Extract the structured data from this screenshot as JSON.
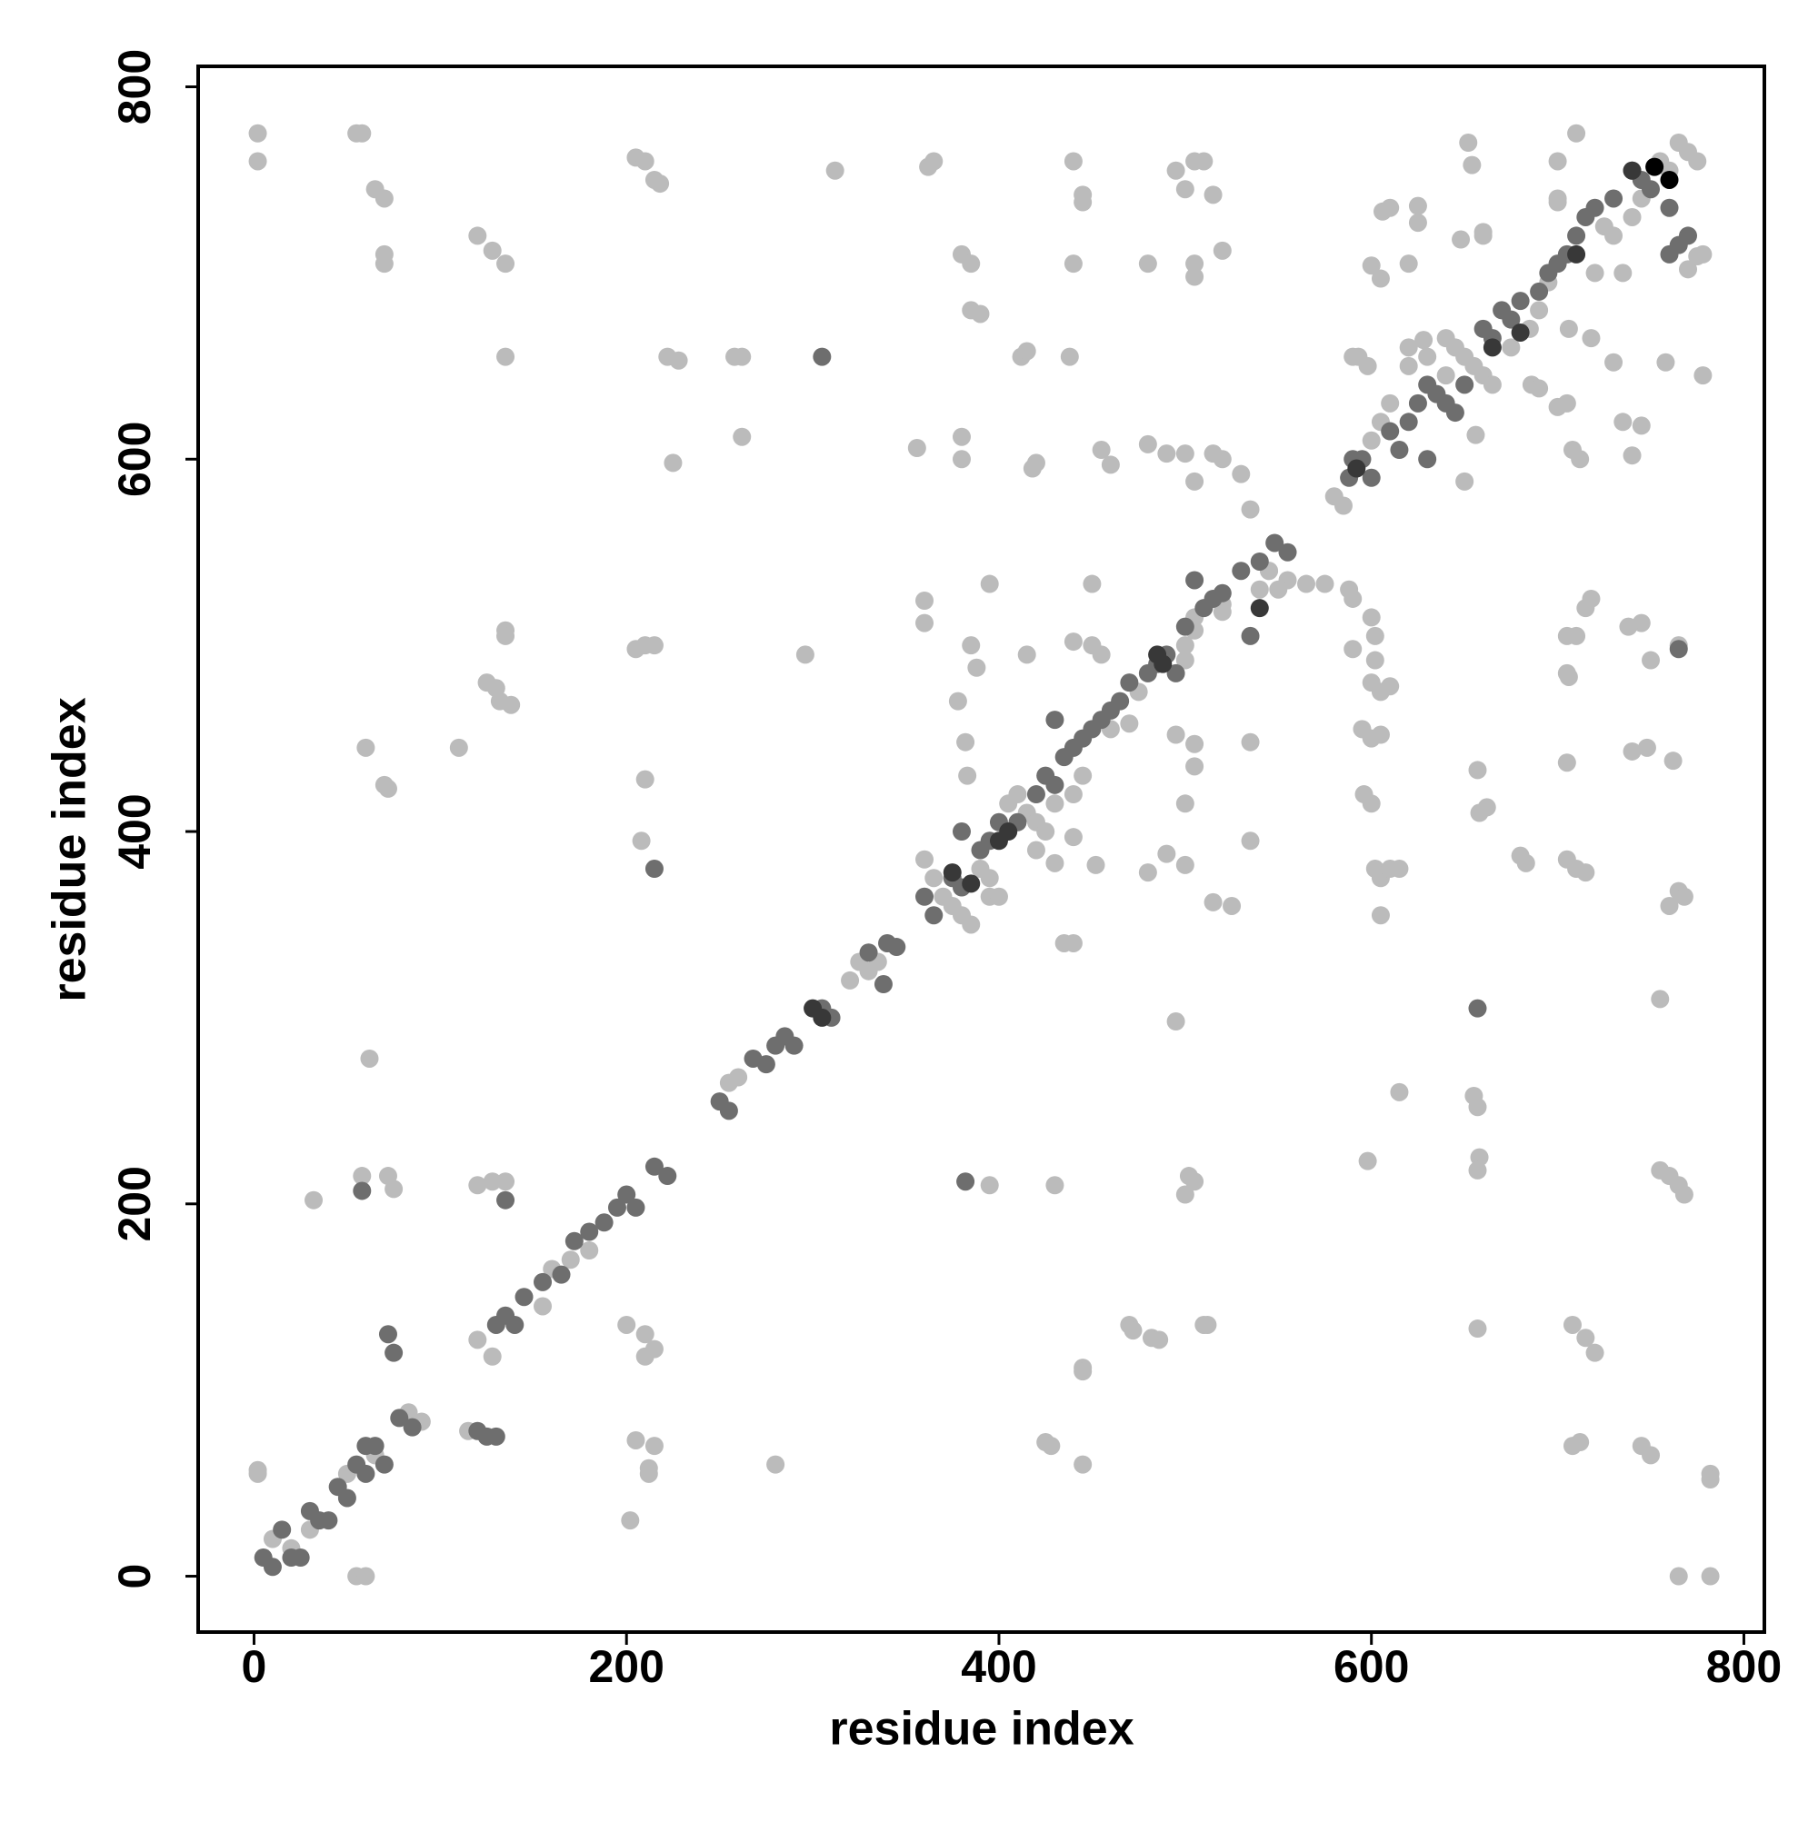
{
  "chart_data": {
    "type": "scatter",
    "xlabel": "residue index",
    "ylabel": "residue index",
    "xlim": [
      -30,
      811
    ],
    "ylim": [
      -30,
      811
    ],
    "xticks": [
      0,
      200,
      400,
      600,
      800
    ],
    "yticks": [
      0,
      200,
      400,
      600,
      800
    ],
    "series": [
      {
        "color": "#bbbbbb",
        "x": [
          2,
          2,
          55,
          58,
          65,
          70,
          70,
          70,
          120,
          128,
          135,
          135,
          205,
          210,
          215,
          218,
          222,
          228,
          258,
          262,
          312,
          362,
          365,
          440,
          445,
          445,
          440,
          380,
          385,
          385,
          390,
          412,
          415,
          438,
          495,
          500,
          505,
          510,
          515,
          520,
          480,
          505,
          505,
          460,
          455,
          420,
          418,
          380,
          380,
          356,
          262,
          225,
          480,
          490,
          500,
          505,
          515,
          520,
          530,
          535,
          652,
          654,
          610,
          606,
          625,
          625,
          620,
          660,
          660,
          600,
          605,
          648,
          590,
          593,
          598,
          620,
          628,
          640,
          700,
          700,
          710,
          760,
          758,
          770,
          775,
          778,
          706,
          718,
          730,
          735,
          745,
          740,
          708,
          712,
          700,
          705,
          686,
          690,
          656,
          650,
          60,
          70,
          72,
          110,
          135,
          135,
          125,
          130,
          132,
          138,
          205,
          210,
          215,
          210,
          208,
          62,
          58,
          72,
          75,
          32,
          120,
          128,
          135,
          200,
          210,
          210,
          215,
          205,
          215,
          212,
          202,
          280,
          212,
          120,
          128,
          115,
          83,
          90,
          2,
          2,
          55,
          60,
          296,
          360,
          360,
          378,
          385,
          388,
          395,
          383,
          382,
          415,
          440,
          450,
          455,
          450,
          452,
          440,
          430,
          440,
          435,
          395,
          400,
          420,
          395,
          430,
          425,
          428,
          445,
          445,
          445,
          470,
          472,
          482,
          486,
          510,
          512,
          500,
          505,
          502,
          495,
          490,
          500,
          500,
          505,
          480,
          515,
          525,
          535,
          535,
          495,
          505,
          500,
          505,
          520,
          545,
          555,
          565,
          575,
          588,
          590,
          600,
          602,
          602,
          600,
          595,
          590,
          600,
          605,
          605,
          610,
          596,
          600,
          602,
          605,
          610,
          615,
          605,
          615,
          598,
          655,
          657,
          658,
          657,
          657,
          657,
          658,
          662,
          680,
          683,
          705,
          706,
          715,
          718,
          705,
          710,
          705,
          705,
          710,
          715,
          708,
          715,
          720,
          708,
          712,
          745,
          750,
          755,
          760,
          765,
          768,
          760,
          765,
          768,
          762,
          765,
          755,
          748,
          740,
          745,
          738,
          750,
          765,
          782,
          782,
          782,
          778,
          700,
          10,
          20,
          30,
          50,
          65,
          155,
          160,
          170,
          180,
          255,
          260,
          320,
          325,
          330,
          335,
          360,
          365,
          370,
          375,
          380,
          385,
          390,
          395,
          405,
          410,
          415,
          420,
          425,
          430,
          440,
          445,
          460,
          470,
          475,
          500,
          505,
          520,
          540,
          545,
          550,
          580,
          585,
          600,
          605,
          610,
          620,
          630,
          640,
          645,
          650,
          655,
          660,
          665,
          675,
          685,
          690,
          695,
          720,
          725,
          730,
          735,
          740,
          755,
          765,
          770,
          775,
          745
        ],
        "values": [
          775,
          760,
          775,
          775,
          745,
          740,
          710,
          705,
          720,
          712,
          705,
          655,
          762,
          760,
          750,
          748,
          655,
          653,
          655,
          655,
          755,
          757,
          760,
          760,
          742,
          738,
          705,
          710,
          705,
          680,
          678,
          655,
          658,
          655,
          755,
          745,
          760,
          760,
          742,
          712,
          705,
          705,
          698,
          597,
          605,
          598,
          595,
          612,
          600,
          606,
          612,
          598,
          608,
          603,
          603,
          588,
          603,
          600,
          592,
          573,
          770,
          758,
          735,
          733,
          736,
          727,
          705,
          720,
          722,
          704,
          697,
          718,
          655,
          655,
          650,
          660,
          664,
          645,
          740,
          760,
          775,
          755,
          652,
          702,
          709,
          645,
          670,
          665,
          652,
          620,
          618,
          602,
          605,
          600,
          628,
          630,
          640,
          638,
          613,
          588,
          445,
          425,
          423,
          445,
          508,
          505,
          480,
          477,
          470,
          468,
          498,
          500,
          500,
          428,
          395,
          278,
          215,
          215,
          208,
          202,
          210,
          212,
          212,
          135,
          130,
          118,
          122,
          73,
          70,
          58,
          30,
          60,
          55,
          127,
          118,
          78,
          88,
          83,
          55,
          57,
          0,
          0,
          495,
          524,
          512,
          470,
          500,
          488,
          533,
          430,
          448,
          495,
          502,
          533,
          495,
          500,
          382,
          397,
          383,
          340,
          340,
          365,
          365,
          390,
          210,
          210,
          72,
          70,
          60,
          112,
          110,
          135,
          132,
          128,
          127,
          135,
          135,
          205,
          212,
          215,
          298,
          388,
          382,
          415,
          435,
          378,
          362,
          360,
          395,
          448,
          452,
          447,
          492,
          508,
          522,
          540,
          535,
          533,
          533,
          530,
          525,
          515,
          505,
          492,
          480,
          455,
          498,
          450,
          452,
          475,
          478,
          420,
          415,
          380,
          375,
          380,
          380,
          355,
          260,
          223,
          258,
          252,
          225,
          218,
          133,
          433,
          410,
          413,
          387,
          383,
          485,
          483,
          520,
          525,
          505,
          505,
          437,
          385,
          380,
          378,
          135,
          128,
          120,
          70,
          72,
          70,
          65,
          218,
          215,
          210,
          205,
          360,
          368,
          365,
          438,
          500,
          310,
          445,
          443,
          512,
          510,
          492,
          0,
          0,
          55,
          52,
          710,
          738,
          20,
          15,
          25,
          55,
          65,
          145,
          165,
          170,
          175,
          265,
          268,
          320,
          330,
          325,
          330,
          385,
          375,
          365,
          360,
          355,
          350,
          380,
          375,
          415,
          420,
          410,
          405,
          400,
          415,
          420,
          430,
          455,
          458,
          475,
          500,
          515,
          518,
          530,
          540,
          530,
          580,
          575,
          610,
          620,
          630,
          650,
          655,
          665,
          660,
          655,
          650,
          645,
          640,
          660,
          670,
          680,
          695,
          700,
          725,
          720,
          700,
          730,
          760,
          770,
          765,
          760,
          740
        ]
      },
      {
        "color": "#6e6e6e",
        "x": [
          305,
          215,
          382,
          657,
          58,
          135,
          765,
          5,
          10,
          15,
          20,
          25,
          30,
          35,
          40,
          45,
          50,
          55,
          60,
          60,
          65,
          70,
          72,
          75,
          78,
          85,
          125,
          130,
          120,
          130,
          135,
          140,
          145,
          155,
          165,
          172,
          180,
          188,
          195,
          200,
          205,
          215,
          222,
          250,
          255,
          268,
          275,
          280,
          285,
          290,
          305,
          310,
          330,
          340,
          345,
          338,
          360,
          365,
          375,
          380,
          390,
          395,
          400,
          410,
          420,
          425,
          430,
          435,
          440,
          445,
          450,
          455,
          460,
          465,
          470,
          480,
          485,
          490,
          495,
          500,
          505,
          510,
          515,
          520,
          530,
          535,
          540,
          548,
          555,
          588,
          595,
          600,
          610,
          615,
          620,
          625,
          630,
          635,
          640,
          645,
          660,
          665,
          670,
          675,
          680,
          690,
          695,
          700,
          705,
          710,
          715,
          720,
          730,
          740,
          745,
          750,
          760,
          760,
          765,
          770,
          630,
          650,
          590,
          380,
          430
        ],
        "values": [
          655,
          380,
          212,
          305,
          207,
          202,
          498,
          10,
          5,
          25,
          10,
          10,
          35,
          30,
          30,
          48,
          42,
          60,
          55,
          70,
          70,
          60,
          130,
          120,
          85,
          80,
          75,
          75,
          78,
          135,
          140,
          135,
          150,
          158,
          162,
          180,
          185,
          190,
          198,
          205,
          198,
          220,
          215,
          255,
          250,
          278,
          275,
          285,
          290,
          285,
          305,
          300,
          335,
          340,
          338,
          318,
          365,
          355,
          375,
          370,
          390,
          395,
          405,
          405,
          420,
          430,
          425,
          440,
          445,
          450,
          455,
          460,
          465,
          470,
          480,
          485,
          490,
          495,
          485,
          510,
          535,
          520,
          525,
          528,
          540,
          505,
          545,
          555,
          550,
          590,
          600,
          590,
          615,
          605,
          620,
          630,
          640,
          635,
          630,
          625,
          670,
          665,
          680,
          675,
          685,
          690,
          700,
          705,
          710,
          720,
          730,
          735,
          740,
          755,
          750,
          745,
          735,
          710,
          715,
          720,
          600,
          640,
          600,
          400,
          460
        ]
      },
      {
        "color": "#383838",
        "x": [
          300,
          305,
          375,
          385,
          400,
          405,
          488,
          485,
          540,
          592,
          665,
          680,
          710,
          740
        ],
        "values": [
          305,
          300,
          378,
          372,
          395,
          400,
          490,
          495,
          520,
          595,
          660,
          668,
          710,
          755
        ]
      },
      {
        "color": "#000000",
        "x": [
          752,
          760
        ],
        "values": [
          757,
          750
        ]
      }
    ]
  }
}
